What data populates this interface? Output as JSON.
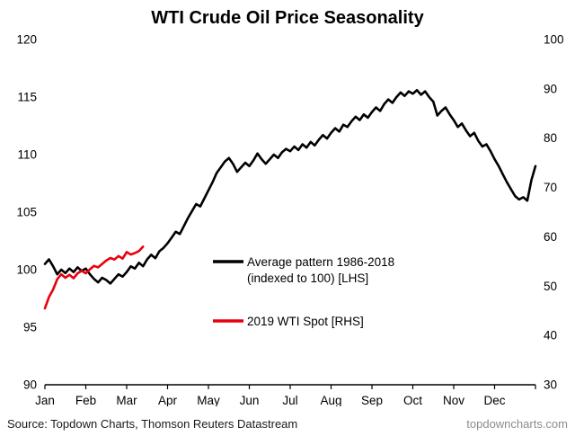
{
  "chart_data": {
    "type": "line",
    "title": "WTI Crude Oil Price Seasonality",
    "x_axis": {
      "tick_labels": [
        "Jan",
        "Feb",
        "Mar",
        "Apr",
        "May",
        "Jun",
        "Jul",
        "Aug",
        "Sep",
        "Oct",
        "Nov",
        "Dec"
      ],
      "range_months": [
        0,
        12
      ],
      "grid": false
    },
    "left_axis": {
      "ticks": [
        90,
        95,
        100,
        105,
        110,
        115,
        120
      ],
      "range": [
        90,
        120
      ]
    },
    "right_axis": {
      "ticks": [
        30,
        40,
        50,
        60,
        70,
        80,
        90,
        100
      ],
      "range": [
        30,
        100
      ]
    },
    "legend": {
      "position": "inside-center",
      "entries": [
        {
          "label_line1": "Average pattern 1986-2018",
          "label_line2": "(indexed to 100) [LHS]",
          "color": "#000000"
        },
        {
          "label_line1": "2019 WTI Spot [RHS]",
          "label_line2": "",
          "color": "#e8000d"
        }
      ]
    },
    "series": [
      {
        "name": "Average pattern 1986-2018 (indexed to 100) [LHS]",
        "axis": "left",
        "color": "#000000",
        "line_width": 2.6,
        "x_start": 0.0,
        "x_step": 0.1,
        "values": [
          100.5,
          100.9,
          100.3,
          99.6,
          100.0,
          99.7,
          100.1,
          99.8,
          100.2,
          99.9,
          100.1,
          99.6,
          99.2,
          98.9,
          99.3,
          99.1,
          98.8,
          99.2,
          99.6,
          99.4,
          99.8,
          100.3,
          100.1,
          100.6,
          100.3,
          100.9,
          101.3,
          101.0,
          101.6,
          101.9,
          102.3,
          102.8,
          103.3,
          103.1,
          103.8,
          104.5,
          105.1,
          105.7,
          105.5,
          106.2,
          106.9,
          107.6,
          108.4,
          108.9,
          109.4,
          109.7,
          109.2,
          108.5,
          108.9,
          109.3,
          109.0,
          109.5,
          110.1,
          109.6,
          109.2,
          109.6,
          110.0,
          109.7,
          110.2,
          110.5,
          110.3,
          110.7,
          110.4,
          110.9,
          110.6,
          111.1,
          110.8,
          111.3,
          111.7,
          111.4,
          111.9,
          112.3,
          112.0,
          112.6,
          112.4,
          112.9,
          113.3,
          113.0,
          113.5,
          113.2,
          113.7,
          114.1,
          113.8,
          114.4,
          114.8,
          114.5,
          115.0,
          115.4,
          115.1,
          115.5,
          115.3,
          115.6,
          115.2,
          115.5,
          115.0,
          114.6,
          113.4,
          113.8,
          114.1,
          113.5,
          113.0,
          112.4,
          112.7,
          112.1,
          111.6,
          111.9,
          111.2,
          110.7,
          110.9,
          110.3,
          109.6,
          109.0,
          108.3,
          107.6,
          107.0,
          106.4,
          106.1,
          106.3,
          106.0,
          107.8,
          109.0
        ]
      },
      {
        "name": "2019 WTI Spot [RHS]",
        "axis": "right",
        "color": "#e8000d",
        "line_width": 2.6,
        "x_start": 0.0,
        "x_step": 0.1,
        "values": [
          45.5,
          47.8,
          49.3,
          51.4,
          52.4,
          51.7,
          52.3,
          51.6,
          52.6,
          53.1,
          52.6,
          53.4,
          54.1,
          53.8,
          54.5,
          55.2,
          55.7,
          55.4,
          56.1,
          55.6,
          56.9,
          56.4,
          56.7,
          57.1,
          58.0
        ]
      }
    ]
  },
  "footer": {
    "source": "Source: Topdown Charts, Thomson Reuters Datastream",
    "watermark": "topdowncharts.com"
  }
}
